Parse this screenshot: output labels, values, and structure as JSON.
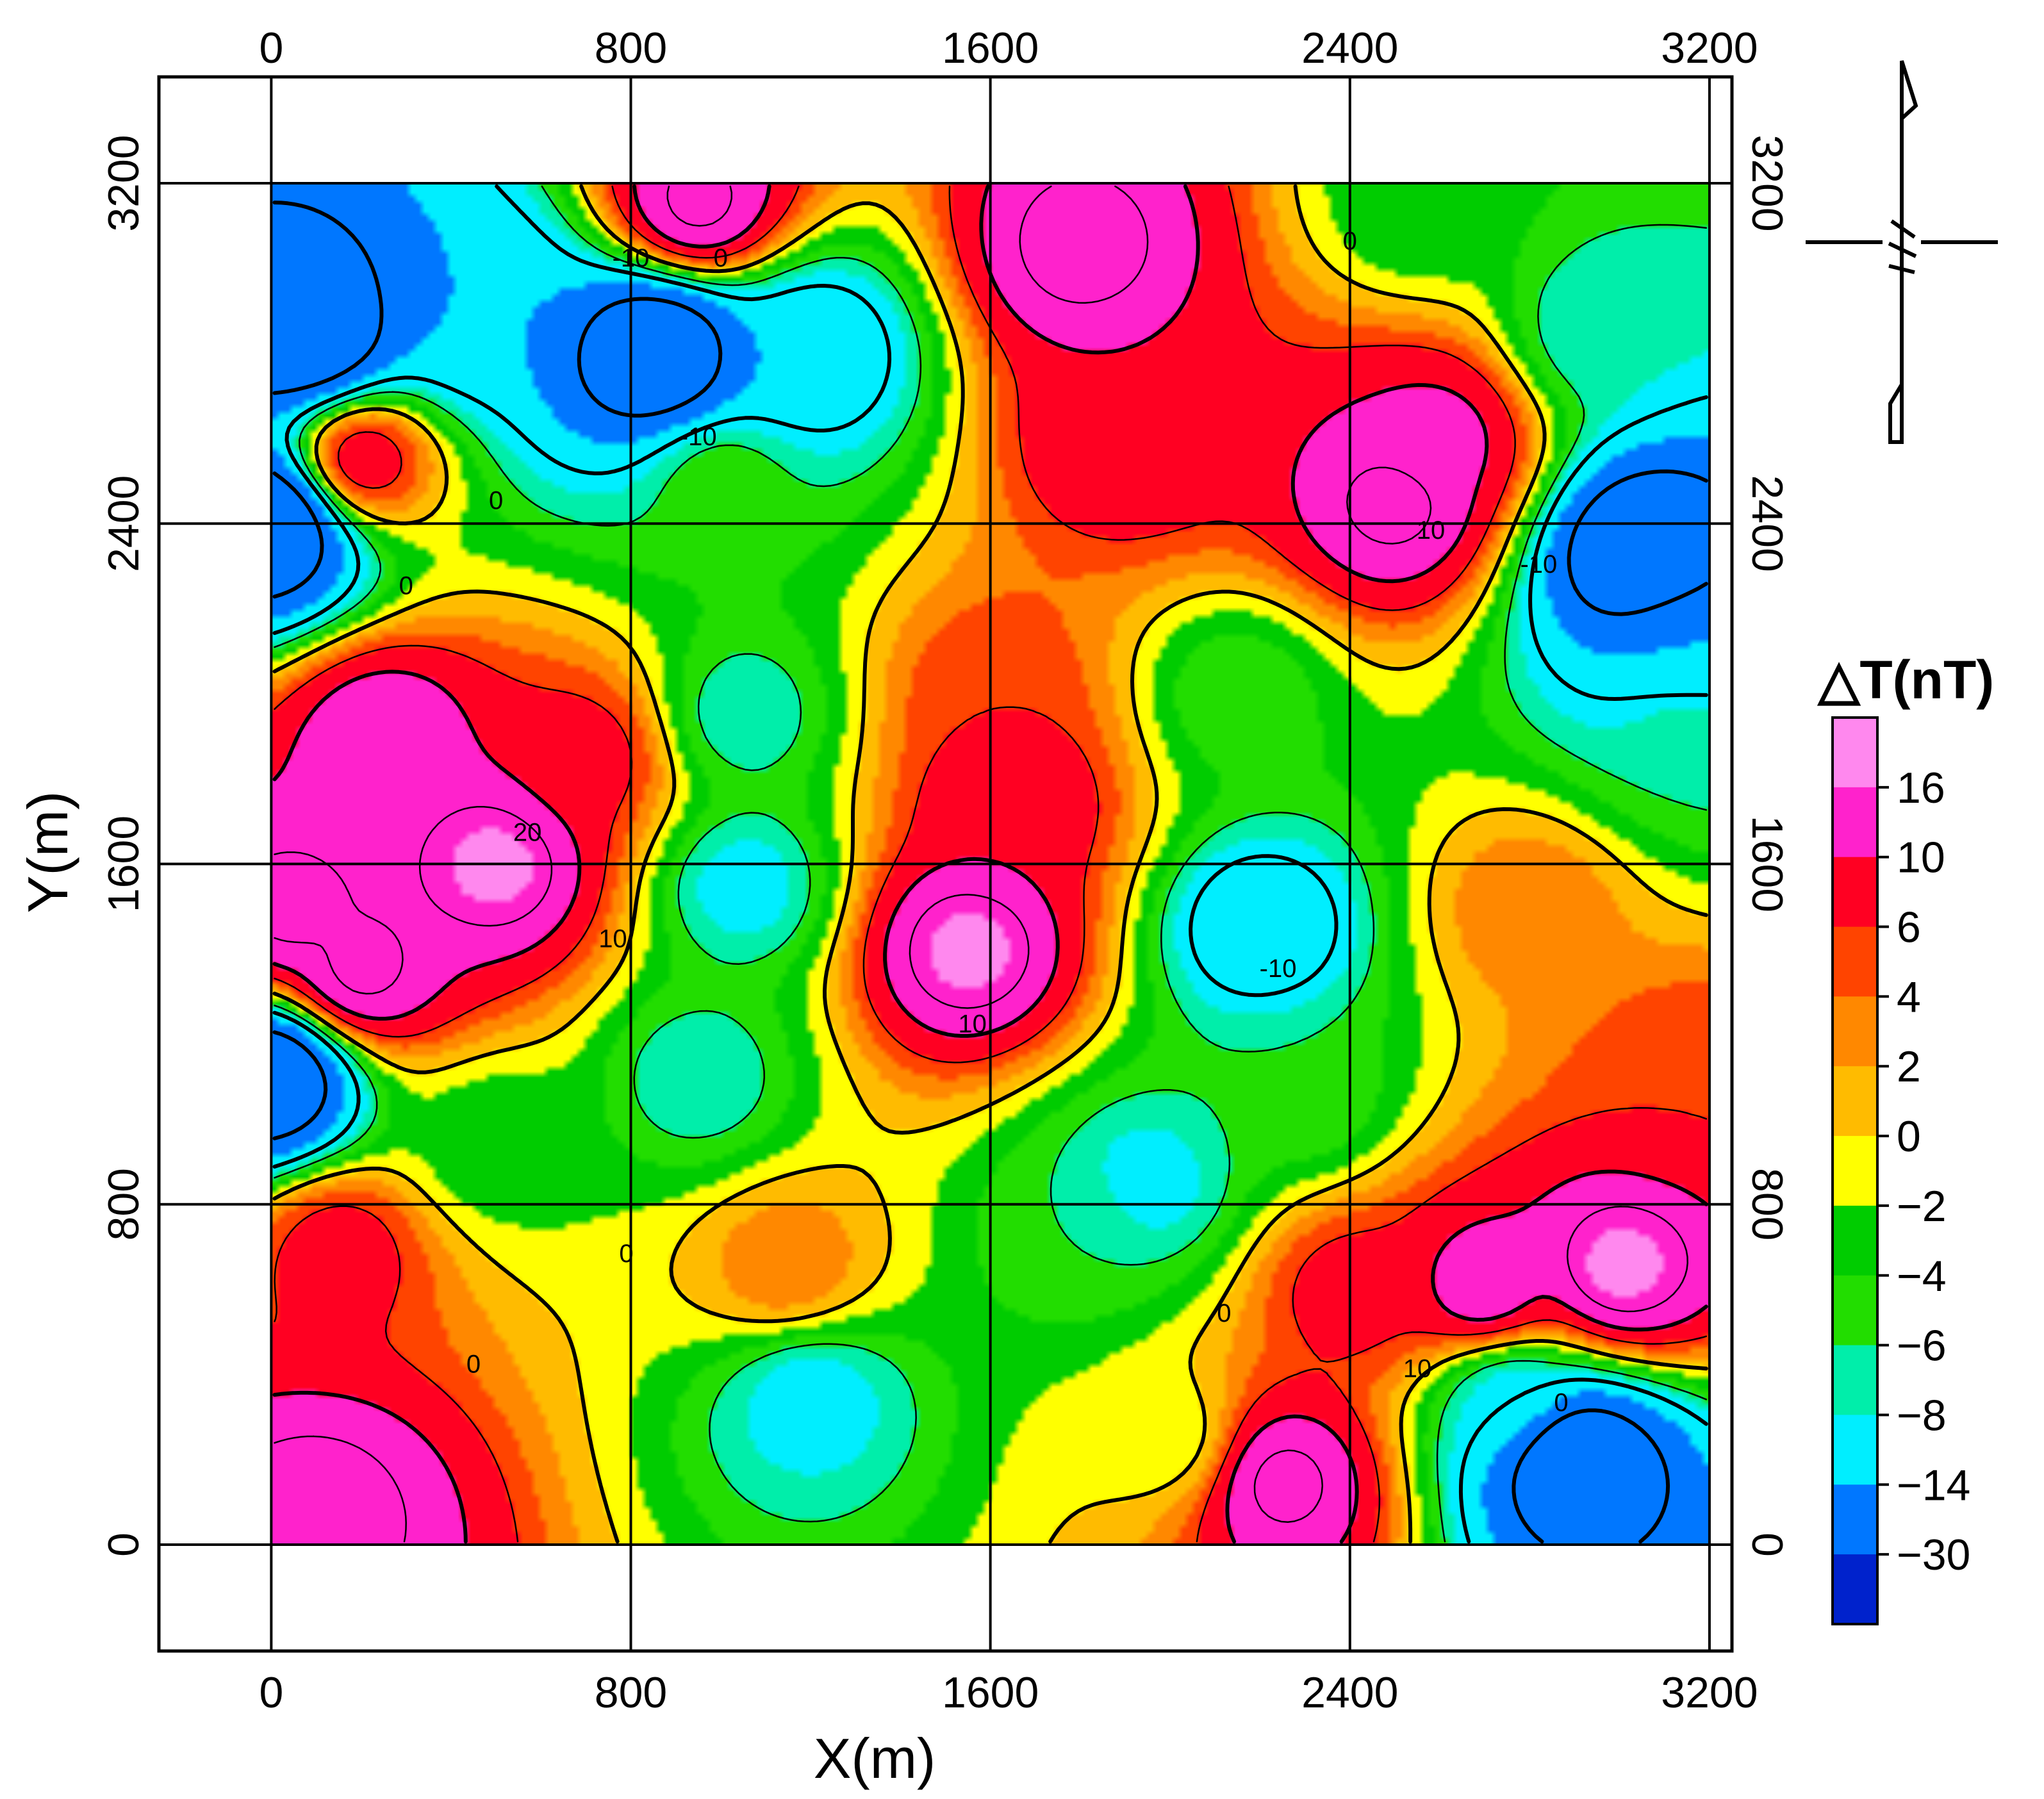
{
  "chart_data": {
    "type": "heatmap",
    "subtype": "filled contour map",
    "xlabel": "X(m)",
    "ylabel": "Y(m)",
    "xlim": [
      -250,
      3250
    ],
    "ylim": [
      -250,
      3450
    ],
    "data_extent": {
      "x": [
        0,
        3200
      ],
      "y": [
        0,
        3200
      ]
    },
    "x_ticks": [
      0,
      800,
      1600,
      2400,
      3200
    ],
    "y_ticks": [
      0,
      800,
      1600,
      2400,
      3200
    ],
    "x_tick_labels": [
      "0",
      "800",
      "1600",
      "2400",
      "3200"
    ],
    "y_tick_labels": [
      "0",
      "800",
      "1600",
      "2400",
      "3200"
    ],
    "grid": true,
    "legend": {
      "title": "△T(nT)",
      "placement": "right",
      "levels": [
        16,
        10,
        6,
        4,
        2,
        0,
        -2,
        -4,
        -6,
        -8,
        -14,
        -30
      ],
      "labels": [
        "16",
        "10",
        "6",
        "4",
        "2",
        "0",
        "−2",
        "−4",
        "−6",
        "−8",
        "−14",
        "−30"
      ],
      "colors": [
        "#ff88ee",
        "#ff22cc",
        "#ff0022",
        "#ff4400",
        "#ff8800",
        "#ffbb00",
        "#ffff00",
        "#00cc00",
        "#22dd00",
        "#00eeaa",
        "#00eeff",
        "#0077ff",
        "#0022cc"
      ]
    },
    "contour_labels": [
      {
        "text": "-10",
        "x": 800,
        "y": 3020
      },
      {
        "text": "-10",
        "x": 950,
        "y": 2600
      },
      {
        "text": "0",
        "x": 1000,
        "y": 3020
      },
      {
        "text": "0",
        "x": 2400,
        "y": 3060
      },
      {
        "text": "0",
        "x": 500,
        "y": 2450
      },
      {
        "text": "0",
        "x": 300,
        "y": 2250
      },
      {
        "text": "10",
        "x": 2580,
        "y": 2380
      },
      {
        "text": "-10",
        "x": 2820,
        "y": 2300
      },
      {
        "text": "20",
        "x": 570,
        "y": 1670
      },
      {
        "text": "10",
        "x": 760,
        "y": 1420
      },
      {
        "text": "10",
        "x": 1560,
        "y": 1220
      },
      {
        "text": "-10",
        "x": 2240,
        "y": 1350
      },
      {
        "text": "0",
        "x": 790,
        "y": 680
      },
      {
        "text": "0",
        "x": 2120,
        "y": 540
      },
      {
        "text": "0",
        "x": 450,
        "y": 420
      },
      {
        "text": "10",
        "x": 2550,
        "y": 410
      },
      {
        "text": "0",
        "x": 2870,
        "y": 330
      }
    ],
    "anomalies": [
      {
        "x": 0,
        "y": 2400,
        "value": -30
      },
      {
        "x": 0,
        "y": 1100,
        "value": -30
      },
      {
        "x": 80,
        "y": 2850,
        "value": -30
      },
      {
        "x": 40,
        "y": 1500,
        "value": 16
      },
      {
        "x": 200,
        "y": 1350,
        "value": 16
      },
      {
        "x": 950,
        "y": 3150,
        "value": 16
      },
      {
        "x": 1800,
        "y": 3050,
        "value": 16
      },
      {
        "x": 860,
        "y": 2800,
        "value": -30
      },
      {
        "x": 1200,
        "y": 2800,
        "value": -14
      },
      {
        "x": 450,
        "y": 2900,
        "value": -14
      },
      {
        "x": 200,
        "y": 2550,
        "value": 10
      },
      {
        "x": 1900,
        "y": 2600,
        "value": 10
      },
      {
        "x": 2500,
        "y": 2450,
        "value": 16
      },
      {
        "x": 2600,
        "y": 2600,
        "value": 12
      },
      {
        "x": 3050,
        "y": 2330,
        "value": -30
      },
      {
        "x": 3150,
        "y": 2100,
        "value": -14
      },
      {
        "x": 2950,
        "y": 2850,
        "value": -8
      },
      {
        "x": 2550,
        "y": 3150,
        "value": -4
      },
      {
        "x": 2800,
        "y": 1500,
        "value": 4
      },
      {
        "x": 500,
        "y": 1600,
        "value": 18
      },
      {
        "x": 250,
        "y": 1900,
        "value": 14
      },
      {
        "x": 700,
        "y": 1850,
        "value": 8
      },
      {
        "x": 1550,
        "y": 1400,
        "value": 18
      },
      {
        "x": 1650,
        "y": 1750,
        "value": 10
      },
      {
        "x": 1600,
        "y": 2000,
        "value": 6
      },
      {
        "x": 1050,
        "y": 1550,
        "value": -10
      },
      {
        "x": 950,
        "y": 1100,
        "value": -8
      },
      {
        "x": 1050,
        "y": 1950,
        "value": -8
      },
      {
        "x": 2200,
        "y": 1450,
        "value": -14
      },
      {
        "x": 1950,
        "y": 850,
        "value": -10
      },
      {
        "x": 2150,
        "y": 2000,
        "value": -6
      },
      {
        "x": 1200,
        "y": 350,
        "value": -10
      },
      {
        "x": 2900,
        "y": 200,
        "value": -30
      },
      {
        "x": 2750,
        "y": 350,
        "value": -10
      },
      {
        "x": 3000,
        "y": 650,
        "value": 18
      },
      {
        "x": 2700,
        "y": 600,
        "value": 14
      },
      {
        "x": 2400,
        "y": 600,
        "value": 8
      },
      {
        "x": 3150,
        "y": 1100,
        "value": 6
      },
      {
        "x": 2250,
        "y": 150,
        "value": 16
      },
      {
        "x": 100,
        "y": 80,
        "value": 16
      },
      {
        "x": 150,
        "y": 700,
        "value": 8
      },
      {
        "x": 1150,
        "y": 650,
        "value": 4
      },
      {
        "x": 1800,
        "y": 750,
        "value": -6
      },
      {
        "x": 2000,
        "y": 250,
        "value": -2
      },
      {
        "x": 500,
        "y": 950,
        "value": -4
      },
      {
        "x": 1000,
        "y": 2500,
        "value": -4
      },
      {
        "x": 2300,
        "y": 1050,
        "value": -6
      },
      {
        "x": 3150,
        "y": 1900,
        "value": -6
      }
    ]
  },
  "north_arrow": {
    "icon": "north-arrow-icon"
  }
}
